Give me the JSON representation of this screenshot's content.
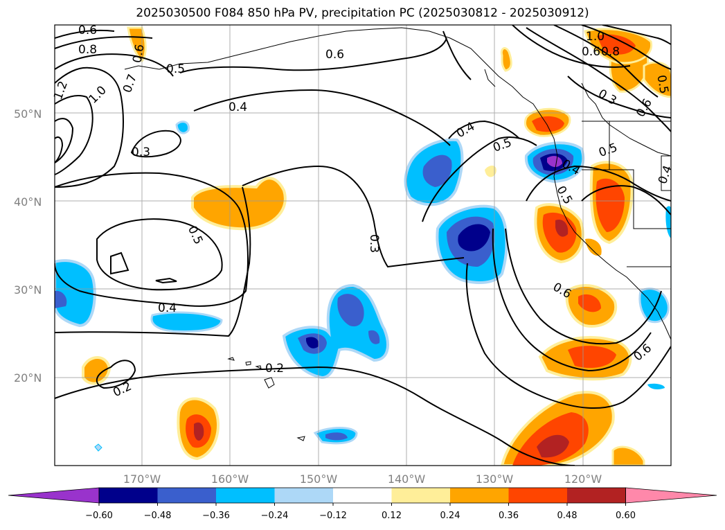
{
  "title": "2025030500 F084 850 hPa PV, precipitation PC (2025030812 - 2025030912)",
  "map": {
    "lat_labels": [
      "50°N",
      "40°N",
      "30°N",
      "20°N"
    ],
    "lon_labels": [
      "170°W",
      "160°W",
      "150°W",
      "140°W",
      "130°W",
      "120°W"
    ],
    "contour_labels": [
      "0.6",
      "0.8",
      "0.6",
      "0.7",
      "1.2",
      "1.0",
      "0.5",
      "0.6",
      "0.4",
      "0.3",
      "0.5",
      "0.4",
      "0.3",
      "0.2",
      "0.2",
      "0.4",
      "0.5",
      "0.5",
      "0.6",
      "0.6",
      "0.3",
      "0.4",
      "0.5",
      "0.6",
      "1.0",
      "0.8",
      "0.5",
      "0.6",
      "0.4"
    ]
  },
  "colorbar": {
    "ticks": [
      "−0.60",
      "−0.48",
      "−0.36",
      "−0.24",
      "−0.12",
      "0.12",
      "0.24",
      "0.36",
      "0.48",
      "0.60"
    ],
    "colors": [
      "#9933cc",
      "#00008b",
      "#3a5fcd",
      "#00bfff",
      "#add8f7",
      "#ffffff",
      "#ffee99",
      "#ffa500",
      "#ff4500",
      "#b22222",
      "#ff88aa"
    ]
  }
}
